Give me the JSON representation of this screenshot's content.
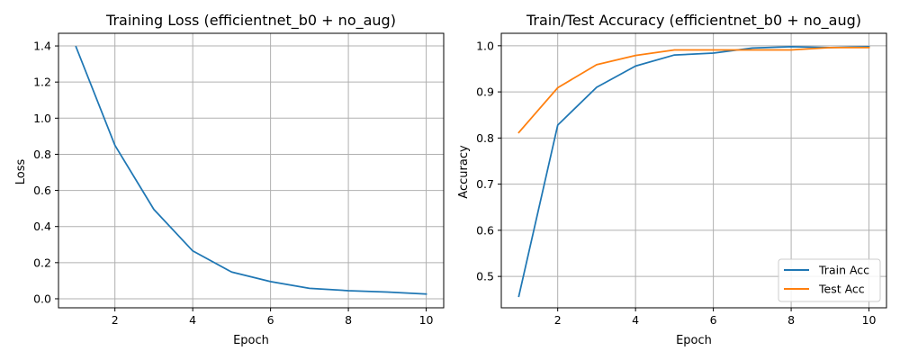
{
  "colors": {
    "train": "#1f77b4",
    "test": "#ff7f0e",
    "grid": "#b0b0b0"
  },
  "chart_data": [
    {
      "type": "line",
      "title": "Training Loss (efficientnet_b0 + no_aug)",
      "xlabel": "Epoch",
      "ylabel": "Loss",
      "grid": true,
      "xlim": [
        0.55,
        10.45
      ],
      "ylim": [
        -0.05,
        1.47
      ],
      "xticks": [
        2,
        4,
        6,
        8,
        10
      ],
      "yticks": [
        0.0,
        0.2,
        0.4,
        0.6,
        0.8,
        1.0,
        1.2,
        1.4
      ],
      "xtick_labels": [
        "2",
        "4",
        "6",
        "8",
        "10"
      ],
      "ytick_labels": [
        "0.0",
        "0.2",
        "0.4",
        "0.6",
        "0.8",
        "1.0",
        "1.2",
        "1.4"
      ],
      "x": [
        1,
        2,
        3,
        4,
        5,
        6,
        7,
        8,
        9,
        10
      ],
      "series": [
        {
          "values": [
            1.395,
            0.85,
            0.495,
            0.265,
            0.148,
            0.095,
            0.058,
            0.045,
            0.037,
            0.026
          ]
        }
      ]
    },
    {
      "type": "line",
      "title": "Train/Test Accuracy (efficientnet_b0 + no_aug)",
      "xlabel": "Epoch",
      "ylabel": "Accuracy",
      "grid": true,
      "legend": "lower-right",
      "xlim": [
        0.55,
        10.45
      ],
      "ylim": [
        0.432,
        1.027
      ],
      "xticks": [
        2,
        4,
        6,
        8,
        10
      ],
      "yticks": [
        0.5,
        0.6,
        0.7,
        0.8,
        0.9,
        1.0
      ],
      "xtick_labels": [
        "2",
        "4",
        "6",
        "8",
        "10"
      ],
      "ytick_labels": [
        "0.5",
        "0.6",
        "0.7",
        "0.8",
        "0.9",
        "1.0"
      ],
      "x": [
        1,
        2,
        3,
        4,
        5,
        6,
        7,
        8,
        9,
        10
      ],
      "series": [
        {
          "name": "Train Acc",
          "values": [
            0.457,
            0.828,
            0.91,
            0.956,
            0.98,
            0.984,
            0.995,
            0.998,
            0.996,
            0.998
          ]
        },
        {
          "name": "Test Acc",
          "values": [
            0.812,
            0.909,
            0.959,
            0.979,
            0.991,
            0.991,
            0.991,
            0.991,
            0.996,
            0.996
          ]
        }
      ]
    }
  ]
}
